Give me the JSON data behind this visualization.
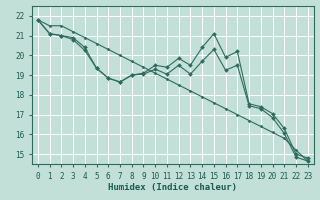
{
  "xlabel": "Humidex (Indice chaleur)",
  "bg_color": "#c2e0d8",
  "grid_color": "#ffffff",
  "line_color": "#2e6b5e",
  "xlim": [
    -0.5,
    23.5
  ],
  "ylim": [
    14.5,
    22.5
  ],
  "xticks": [
    0,
    1,
    2,
    3,
    4,
    5,
    6,
    7,
    8,
    9,
    10,
    11,
    12,
    13,
    14,
    15,
    16,
    17,
    18,
    19,
    20,
    21,
    22,
    23
  ],
  "yticks": [
    15,
    16,
    17,
    18,
    19,
    20,
    21,
    22
  ],
  "line1_x": [
    0,
    1,
    2,
    3,
    4,
    5,
    6,
    7,
    8,
    9,
    10,
    11,
    12,
    13,
    14,
    15,
    16,
    17,
    18,
    19,
    20,
    21,
    22,
    23
  ],
  "line1_y": [
    21.8,
    21.1,
    21.0,
    20.9,
    20.4,
    19.35,
    18.85,
    18.65,
    19.0,
    19.1,
    19.5,
    19.4,
    19.85,
    19.5,
    20.4,
    21.1,
    19.9,
    20.2,
    17.55,
    17.4,
    17.05,
    16.3,
    15.0,
    14.8
  ],
  "line2_x": [
    0,
    1,
    2,
    3,
    4,
    5,
    6,
    7,
    8,
    9,
    10,
    11,
    12,
    13,
    14,
    15,
    16,
    17,
    18,
    19,
    20,
    21,
    22,
    23
  ],
  "line2_y": [
    21.8,
    21.1,
    21.0,
    20.8,
    20.25,
    19.35,
    18.85,
    18.65,
    19.0,
    19.05,
    19.3,
    19.05,
    19.5,
    19.05,
    19.7,
    20.3,
    19.25,
    19.5,
    17.45,
    17.3,
    16.85,
    16.05,
    14.85,
    14.65
  ],
  "line3_x": [
    0,
    23
  ],
  "line3_y": [
    21.8,
    14.65
  ],
  "line3_markers_x": [
    0,
    1,
    2,
    3,
    4,
    5,
    6,
    7,
    8,
    9,
    10,
    11,
    12,
    13,
    14,
    15,
    16,
    17,
    18,
    19,
    20,
    21,
    22,
    23
  ],
  "line3_markers_y": [
    21.8,
    21.5,
    21.5,
    21.2,
    20.9,
    20.6,
    20.3,
    20.0,
    19.7,
    19.4,
    19.1,
    18.8,
    18.5,
    18.2,
    17.9,
    17.6,
    17.3,
    17.0,
    16.7,
    16.4,
    16.1,
    15.8,
    15.2,
    14.65
  ]
}
